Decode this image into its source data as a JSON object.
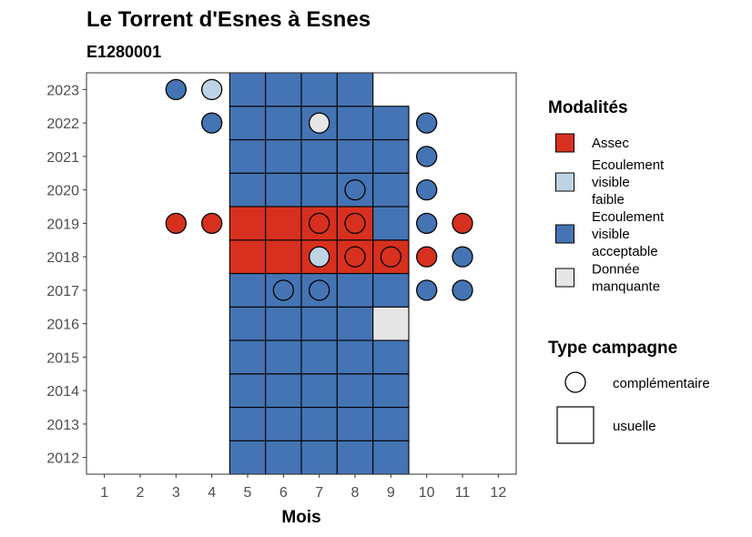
{
  "chart_data": {
    "type": "heatmap",
    "title": "Le Torrent d'Esnes à Esnes",
    "subtitle": "E1280001",
    "xlabel": "Mois",
    "ylabel": "",
    "x_ticks": [
      1,
      2,
      3,
      4,
      5,
      6,
      7,
      8,
      9,
      10,
      11,
      12
    ],
    "y_ticks": [
      2012,
      2013,
      2014,
      2015,
      2016,
      2017,
      2018,
      2019,
      2020,
      2021,
      2022,
      2023
    ],
    "xlim": [
      0.5,
      12.5
    ],
    "ylim": [
      2011.5,
      2023.5
    ],
    "grid": false,
    "legend_placement": "right",
    "colors": {
      "Assec": "#d7301f",
      "Ecoulement visible faible": "#bed4e5",
      "Ecoulement visible acceptable": "#4574b4",
      "Donnée manquante": "#e6e6e6"
    },
    "legend_modalites": {
      "title": "Modalités",
      "items": [
        {
          "key": "Assec",
          "lines": [
            "Assec"
          ]
        },
        {
          "key": "Ecoulement visible faible",
          "lines": [
            "Ecoulement",
            "visible",
            "faible"
          ]
        },
        {
          "key": "Ecoulement visible acceptable",
          "lines": [
            "Ecoulement",
            "visible",
            "acceptable"
          ]
        },
        {
          "key": "Donnée manquante",
          "lines": [
            "Donnée",
            "manquante"
          ]
        }
      ]
    },
    "legend_campagne": {
      "title": "Type campagne",
      "items": [
        {
          "key": "complémentaire",
          "label": "complémentaire",
          "shape": "circle"
        },
        {
          "key": "usuelle",
          "label": "usuelle",
          "shape": "square"
        }
      ]
    },
    "usuelle": [
      {
        "year": 2012,
        "month": 5,
        "value": "Ecoulement visible acceptable"
      },
      {
        "year": 2012,
        "month": 6,
        "value": "Ecoulement visible acceptable"
      },
      {
        "year": 2012,
        "month": 7,
        "value": "Ecoulement visible acceptable"
      },
      {
        "year": 2012,
        "month": 8,
        "value": "Ecoulement visible acceptable"
      },
      {
        "year": 2012,
        "month": 9,
        "value": "Ecoulement visible acceptable"
      },
      {
        "year": 2013,
        "month": 5,
        "value": "Ecoulement visible acceptable"
      },
      {
        "year": 2013,
        "month": 6,
        "value": "Ecoulement visible acceptable"
      },
      {
        "year": 2013,
        "month": 7,
        "value": "Ecoulement visible acceptable"
      },
      {
        "year": 2013,
        "month": 8,
        "value": "Ecoulement visible acceptable"
      },
      {
        "year": 2013,
        "month": 9,
        "value": "Ecoulement visible acceptable"
      },
      {
        "year": 2014,
        "month": 5,
        "value": "Ecoulement visible acceptable"
      },
      {
        "year": 2014,
        "month": 6,
        "value": "Ecoulement visible acceptable"
      },
      {
        "year": 2014,
        "month": 7,
        "value": "Ecoulement visible acceptable"
      },
      {
        "year": 2014,
        "month": 8,
        "value": "Ecoulement visible acceptable"
      },
      {
        "year": 2014,
        "month": 9,
        "value": "Ecoulement visible acceptable"
      },
      {
        "year": 2015,
        "month": 5,
        "value": "Ecoulement visible acceptable"
      },
      {
        "year": 2015,
        "month": 6,
        "value": "Ecoulement visible acceptable"
      },
      {
        "year": 2015,
        "month": 7,
        "value": "Ecoulement visible acceptable"
      },
      {
        "year": 2015,
        "month": 8,
        "value": "Ecoulement visible acceptable"
      },
      {
        "year": 2015,
        "month": 9,
        "value": "Ecoulement visible acceptable"
      },
      {
        "year": 2016,
        "month": 5,
        "value": "Ecoulement visible acceptable"
      },
      {
        "year": 2016,
        "month": 6,
        "value": "Ecoulement visible acceptable"
      },
      {
        "year": 2016,
        "month": 7,
        "value": "Ecoulement visible acceptable"
      },
      {
        "year": 2016,
        "month": 8,
        "value": "Ecoulement visible acceptable"
      },
      {
        "year": 2016,
        "month": 9,
        "value": "Donnée manquante"
      },
      {
        "year": 2017,
        "month": 5,
        "value": "Ecoulement visible acceptable"
      },
      {
        "year": 2017,
        "month": 6,
        "value": "Ecoulement visible acceptable"
      },
      {
        "year": 2017,
        "month": 7,
        "value": "Ecoulement visible acceptable"
      },
      {
        "year": 2017,
        "month": 8,
        "value": "Ecoulement visible acceptable"
      },
      {
        "year": 2017,
        "month": 9,
        "value": "Ecoulement visible acceptable"
      },
      {
        "year": 2018,
        "month": 5,
        "value": "Assec"
      },
      {
        "year": 2018,
        "month": 6,
        "value": "Assec"
      },
      {
        "year": 2018,
        "month": 7,
        "value": "Assec"
      },
      {
        "year": 2018,
        "month": 8,
        "value": "Assec"
      },
      {
        "year": 2018,
        "month": 9,
        "value": "Assec"
      },
      {
        "year": 2019,
        "month": 5,
        "value": "Assec"
      },
      {
        "year": 2019,
        "month": 6,
        "value": "Assec"
      },
      {
        "year": 2019,
        "month": 7,
        "value": "Assec"
      },
      {
        "year": 2019,
        "month": 8,
        "value": "Assec"
      },
      {
        "year": 2019,
        "month": 9,
        "value": "Ecoulement visible acceptable"
      },
      {
        "year": 2020,
        "month": 5,
        "value": "Ecoulement visible acceptable"
      },
      {
        "year": 2020,
        "month": 6,
        "value": "Ecoulement visible acceptable"
      },
      {
        "year": 2020,
        "month": 7,
        "value": "Ecoulement visible acceptable"
      },
      {
        "year": 2020,
        "month": 8,
        "value": "Ecoulement visible acceptable"
      },
      {
        "year": 2020,
        "month": 9,
        "value": "Ecoulement visible acceptable"
      },
      {
        "year": 2021,
        "month": 5,
        "value": "Ecoulement visible acceptable"
      },
      {
        "year": 2021,
        "month": 6,
        "value": "Ecoulement visible acceptable"
      },
      {
        "year": 2021,
        "month": 7,
        "value": "Ecoulement visible acceptable"
      },
      {
        "year": 2021,
        "month": 8,
        "value": "Ecoulement visible acceptable"
      },
      {
        "year": 2021,
        "month": 9,
        "value": "Ecoulement visible acceptable"
      },
      {
        "year": 2022,
        "month": 5,
        "value": "Ecoulement visible acceptable"
      },
      {
        "year": 2022,
        "month": 6,
        "value": "Ecoulement visible acceptable"
      },
      {
        "year": 2022,
        "month": 7,
        "value": "Ecoulement visible acceptable"
      },
      {
        "year": 2022,
        "month": 8,
        "value": "Ecoulement visible acceptable"
      },
      {
        "year": 2022,
        "month": 9,
        "value": "Ecoulement visible acceptable"
      },
      {
        "year": 2023,
        "month": 5,
        "value": "Ecoulement visible acceptable"
      },
      {
        "year": 2023,
        "month": 6,
        "value": "Ecoulement visible acceptable"
      },
      {
        "year": 2023,
        "month": 7,
        "value": "Ecoulement visible acceptable"
      },
      {
        "year": 2023,
        "month": 8,
        "value": "Ecoulement visible acceptable"
      }
    ],
    "complementaire": [
      {
        "year": 2023,
        "month": 3,
        "value": "Ecoulement visible acceptable"
      },
      {
        "year": 2023,
        "month": 4,
        "value": "Ecoulement visible faible"
      },
      {
        "year": 2022,
        "month": 4,
        "value": "Ecoulement visible acceptable"
      },
      {
        "year": 2022,
        "month": 7,
        "value": "Donnée manquante"
      },
      {
        "year": 2022,
        "month": 10,
        "value": "Ecoulement visible acceptable"
      },
      {
        "year": 2021,
        "month": 10,
        "value": "Ecoulement visible acceptable"
      },
      {
        "year": 2020,
        "month": 8,
        "value": "Ecoulement visible acceptable"
      },
      {
        "year": 2020,
        "month": 10,
        "value": "Ecoulement visible acceptable"
      },
      {
        "year": 2019,
        "month": 3,
        "value": "Assec"
      },
      {
        "year": 2019,
        "month": 4,
        "value": "Assec"
      },
      {
        "year": 2019,
        "month": 7,
        "value": "Assec"
      },
      {
        "year": 2019,
        "month": 8,
        "value": "Assec"
      },
      {
        "year": 2019,
        "month": 10,
        "value": "Ecoulement visible acceptable"
      },
      {
        "year": 2019,
        "month": 11,
        "value": "Assec"
      },
      {
        "year": 2018,
        "month": 7,
        "value": "Ecoulement visible faible"
      },
      {
        "year": 2018,
        "month": 8,
        "value": "Assec"
      },
      {
        "year": 2018,
        "month": 9,
        "value": "Assec"
      },
      {
        "year": 2018,
        "month": 10,
        "value": "Assec"
      },
      {
        "year": 2018,
        "month": 11,
        "value": "Ecoulement visible acceptable"
      },
      {
        "year": 2017,
        "month": 6,
        "value": "Ecoulement visible acceptable"
      },
      {
        "year": 2017,
        "month": 7,
        "value": "Ecoulement visible acceptable"
      },
      {
        "year": 2017,
        "month": 10,
        "value": "Ecoulement visible acceptable"
      },
      {
        "year": 2017,
        "month": 11,
        "value": "Ecoulement visible acceptable"
      }
    ]
  }
}
